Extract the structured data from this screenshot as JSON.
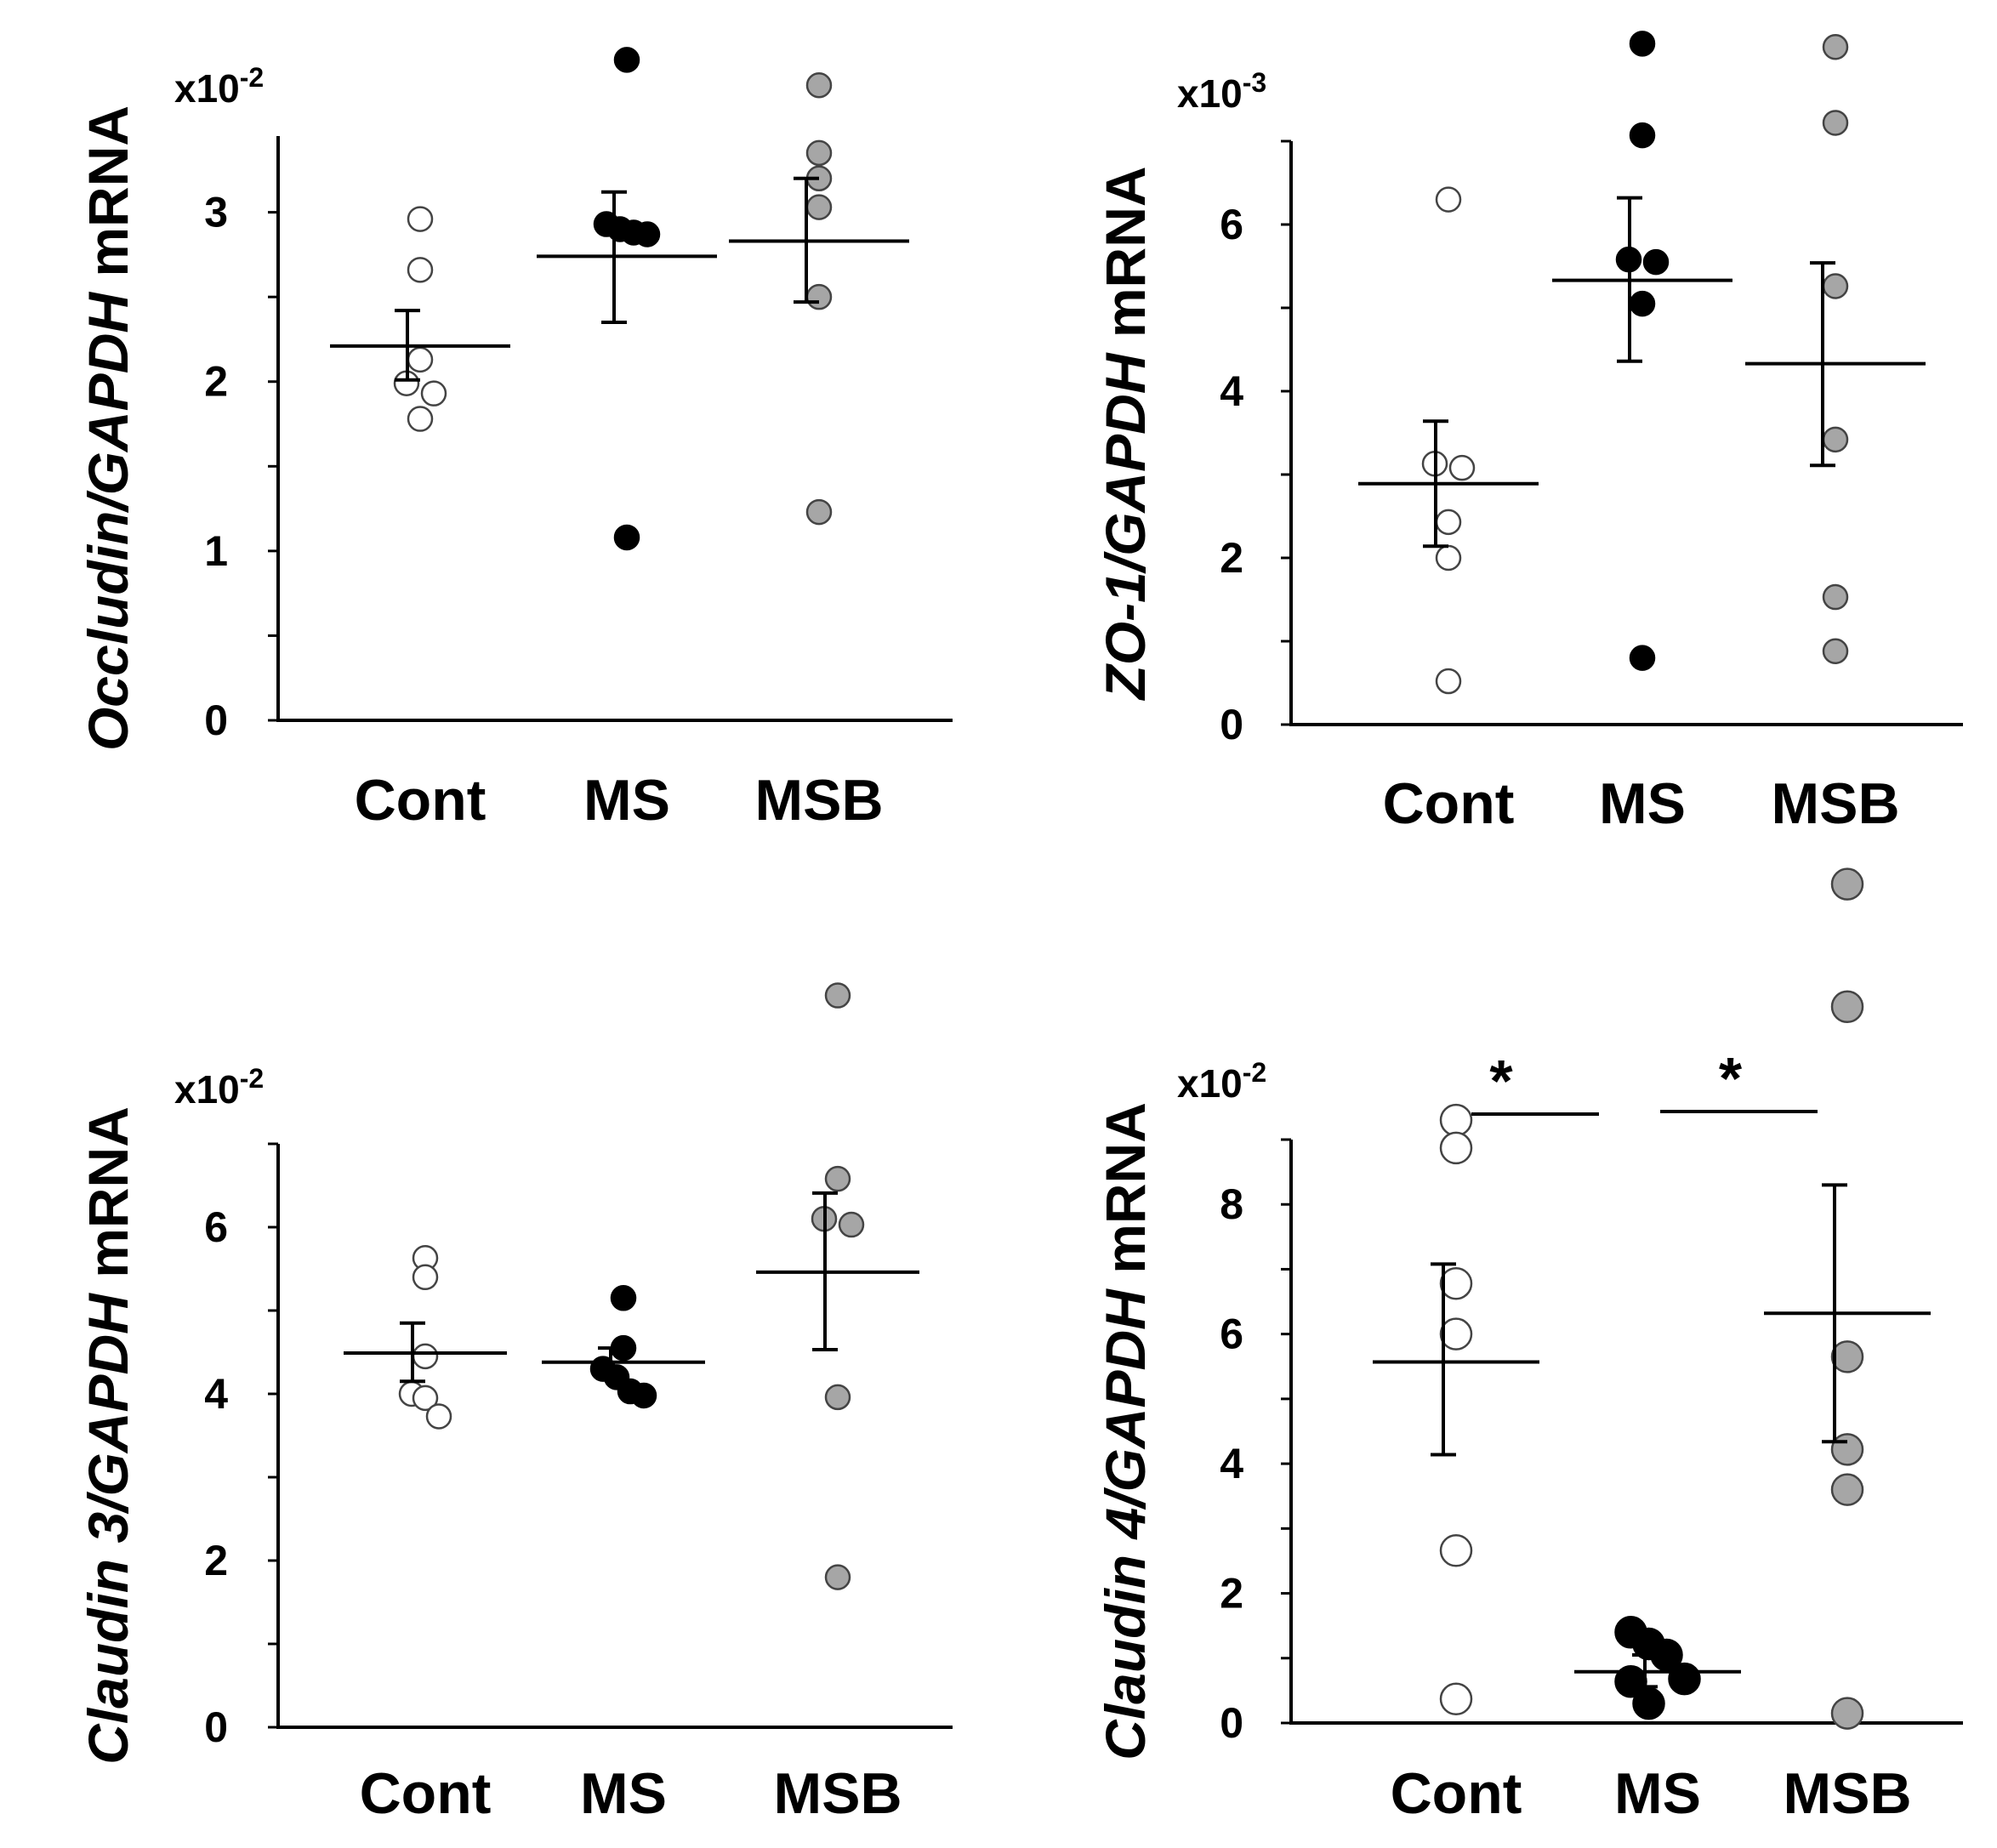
{
  "colors": {
    "Cont": "#ffffff",
    "MS": "#000000",
    "MSB": "#a6a6a6",
    "axis": "#000000"
  },
  "chart_data": [
    {
      "type": "scatter",
      "ylabel_parts": [
        {
          "text": "Occludin/",
          "italic": true
        },
        {
          "text": "GAPDH",
          "italic": true
        },
        {
          "text": " mRNA",
          "italic": false
        }
      ],
      "multiplier": "x10",
      "multiplier_exp": "-2",
      "categories": [
        "Cont",
        "MS",
        "MSB"
      ],
      "ylim": [
        0,
        3.45
      ],
      "yticks": [
        "0",
        "1",
        "2",
        "3"
      ],
      "minor_step": 0.5,
      "series": [
        {
          "name": "Cont",
          "mean": 2.21,
          "sem_low": 2.01,
          "sem_high": 2.42,
          "points": [
            2.96,
            2.66,
            2.13,
            1.99,
            1.93,
            1.78
          ]
        },
        {
          "name": "MS",
          "mean": 2.74,
          "sem_low": 2.35,
          "sem_high": 3.12,
          "points": [
            3.9,
            2.93,
            2.9,
            2.88,
            2.87,
            1.08
          ]
        },
        {
          "name": "MSB",
          "mean": 2.83,
          "sem_low": 2.47,
          "sem_high": 3.2,
          "points": [
            3.75,
            3.35,
            3.2,
            3.03,
            2.5,
            1.23
          ]
        }
      ]
    },
    {
      "type": "scatter",
      "ylabel_parts": [
        {
          "text": "ZO-1/",
          "italic": true
        },
        {
          "text": "GAPDH",
          "italic": true
        },
        {
          "text": " mRNA",
          "italic": false
        }
      ],
      "multiplier": "x10",
      "multiplier_exp": "-3",
      "categories": [
        "Cont",
        "MS",
        "MSB"
      ],
      "ylim": [
        0,
        7
      ],
      "yticks": [
        "0",
        "2",
        "4",
        "6"
      ],
      "minor_step": 1,
      "series": [
        {
          "name": "Cont",
          "mean": 2.89,
          "sem_low": 2.14,
          "sem_high": 3.64,
          "points": [
            6.3,
            3.13,
            3.08,
            2.43,
            2.0,
            0.52
          ]
        },
        {
          "name": "MS",
          "mean": 5.33,
          "sem_low": 4.36,
          "sem_high": 6.32,
          "points": [
            8.17,
            7.07,
            5.58,
            5.55,
            5.05,
            0.8
          ]
        },
        {
          "name": "MSB",
          "mean": 4.33,
          "sem_low": 3.11,
          "sem_high": 5.54,
          "points": [
            8.13,
            7.22,
            5.26,
            3.42,
            1.53,
            0.88
          ]
        }
      ]
    },
    {
      "type": "scatter",
      "ylabel_parts": [
        {
          "text": "Claudin 3/",
          "italic": true
        },
        {
          "text": "GAPDH",
          "italic": true
        },
        {
          "text": " mRNA",
          "italic": false
        }
      ],
      "multiplier": "x10",
      "multiplier_exp": "-2",
      "categories": [
        "Cont",
        "MS",
        "MSB"
      ],
      "ylim": [
        0,
        7
      ],
      "yticks": [
        "0",
        "2",
        "4",
        "6"
      ],
      "minor_step": 1,
      "series": [
        {
          "name": "Cont",
          "mean": 4.49,
          "sem_low": 4.15,
          "sem_high": 4.85,
          "points": [
            5.63,
            5.4,
            4.45,
            4.0,
            3.95,
            3.73
          ]
        },
        {
          "name": "MS",
          "mean": 4.38,
          "sem_low": 4.24,
          "sem_high": 4.55,
          "points": [
            5.15,
            4.55,
            4.3,
            4.2,
            4.03,
            3.98
          ]
        },
        {
          "name": "MSB",
          "mean": 5.46,
          "sem_low": 4.53,
          "sem_high": 6.41,
          "points": [
            8.78,
            6.58,
            6.1,
            6.03,
            3.96,
            1.8
          ]
        }
      ]
    },
    {
      "type": "scatter",
      "ylabel_parts": [
        {
          "text": "Claudin 4/",
          "italic": true
        },
        {
          "text": "GAPDH",
          "italic": true
        },
        {
          "text": " mRNA",
          "italic": false
        }
      ],
      "multiplier": "x10",
      "multiplier_exp": "-2",
      "categories": [
        "Cont",
        "MS",
        "MSB"
      ],
      "ylim": [
        0,
        9
      ],
      "yticks": [
        "0",
        "2",
        "4",
        "6",
        "8"
      ],
      "minor_step": 1,
      "series": [
        {
          "name": "Cont",
          "mean": 5.57,
          "sem_low": 4.14,
          "sem_high": 7.08,
          "points": [
            9.3,
            8.87,
            6.78,
            6.0,
            2.66,
            0.37
          ]
        },
        {
          "name": "MS",
          "mean": 0.79,
          "sem_low": 0.56,
          "sem_high": 1.05,
          "points": [
            1.4,
            1.22,
            1.05,
            0.68,
            0.64,
            0.3
          ]
        },
        {
          "name": "MSB",
          "mean": 6.32,
          "sem_low": 4.34,
          "sem_high": 8.3,
          "points": [
            12.94,
            11.05,
            5.65,
            4.22,
            3.6,
            0.15
          ]
        }
      ],
      "significance": [
        {
          "from": "Cont",
          "to": "MS",
          "label": "*"
        },
        {
          "from": "MS",
          "to": "MSB",
          "label": "*"
        }
      ]
    }
  ]
}
